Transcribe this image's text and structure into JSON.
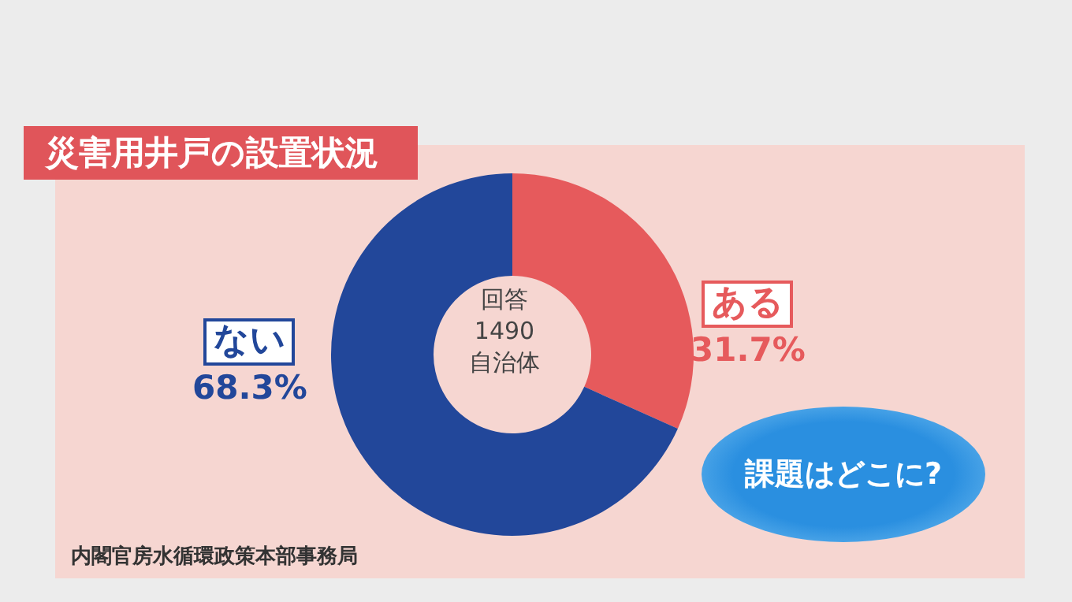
{
  "chart_data": {
    "type": "donut",
    "title": "災害用井戸の設置状況",
    "categories": [
      "ある",
      "ない"
    ],
    "values": [
      31.7,
      68.3
    ],
    "colors": [
      "#e65a5c",
      "#22479a"
    ],
    "value_labels": [
      "31.7%",
      "68.3%"
    ],
    "annotations": [
      "回答\n1490\n自治体",
      "課題はどこに?",
      "内閣官房水循環政策本部事務局"
    ]
  }
}
